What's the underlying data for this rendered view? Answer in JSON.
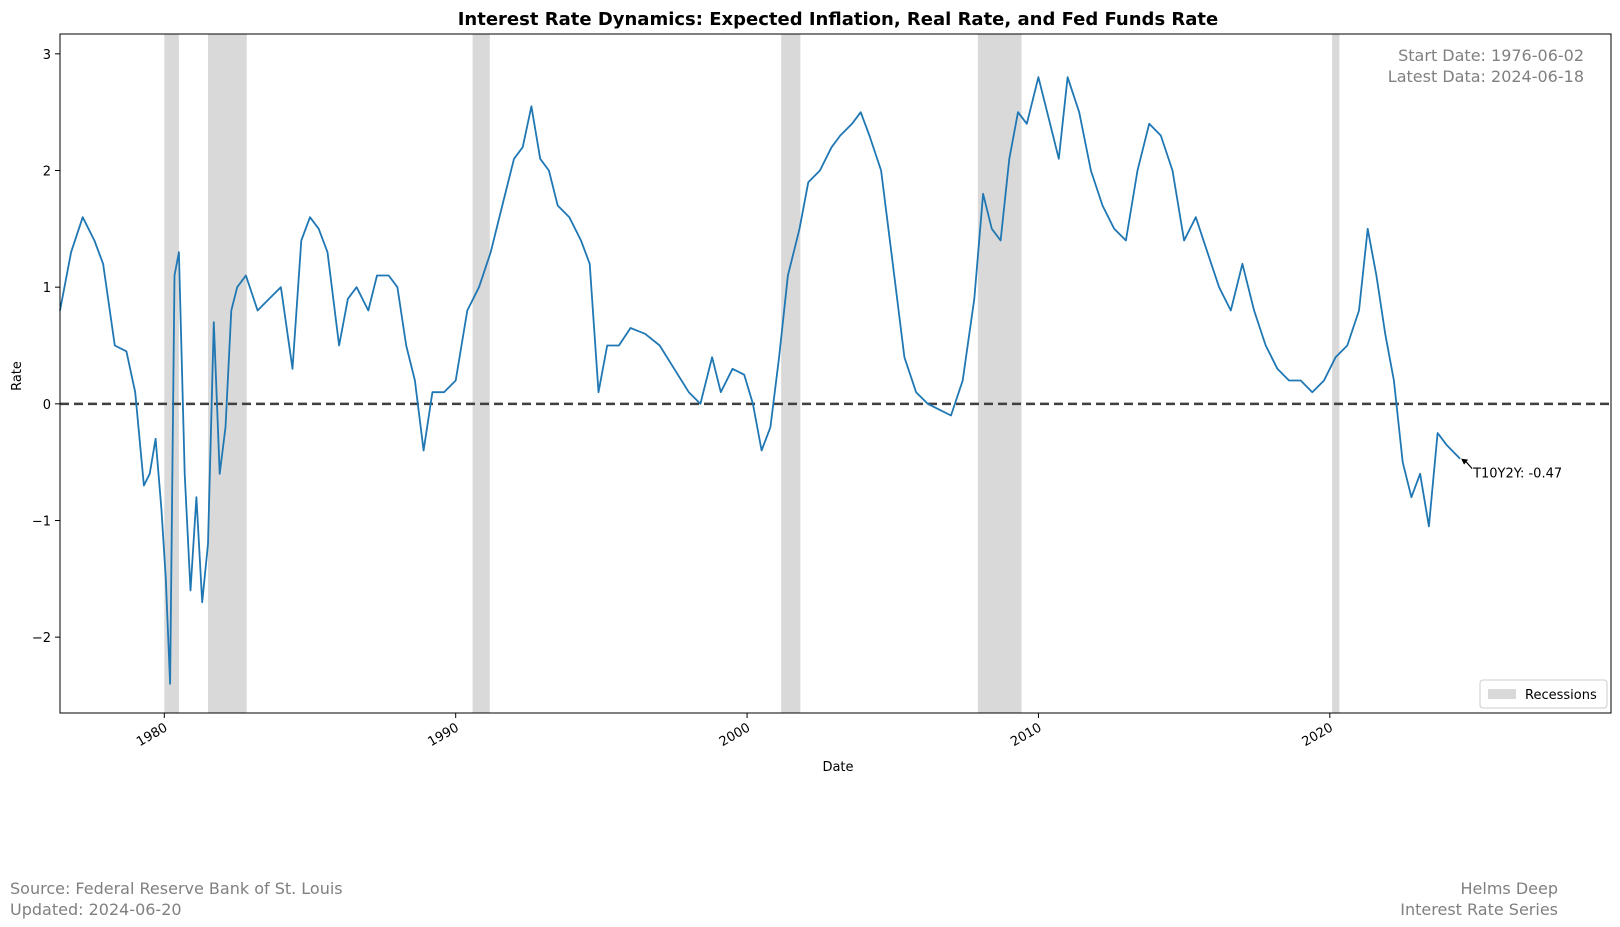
{
  "chart_data": {
    "type": "line",
    "title": "Interest Rate Dynamics: Expected Inflation, Real Rate, and Fed Funds Rate",
    "xlabel": "Date",
    "ylabel": "Rate",
    "xlim": [
      1976.42,
      2029.65
    ],
    "ylim": [
      -2.65,
      3.17
    ],
    "x_ticks": [
      1980,
      1990,
      2000,
      2010,
      2020
    ],
    "y_ticks": [
      -2,
      -1,
      0,
      1,
      2,
      3
    ],
    "y_tick_labels": [
      "−2",
      "−1",
      "0",
      "1",
      "2",
      "3"
    ],
    "zero_line": {
      "y": 0,
      "style": "dashed",
      "color": "#404040"
    },
    "recessions": [
      {
        "start": 1980.0,
        "end": 1980.5
      },
      {
        "start": 1981.5,
        "end": 1982.83
      },
      {
        "start": 1990.58,
        "end": 1991.17
      },
      {
        "start": 2001.17,
        "end": 2001.83
      },
      {
        "start": 2007.92,
        "end": 2009.42
      },
      {
        "start": 2020.08,
        "end": 2020.33
      }
    ],
    "legend": {
      "label": "Recessions",
      "position": "lower-right",
      "color": "#d9d9d9"
    },
    "series": [
      {
        "color": "#1f77b4",
        "x": [
          1976.42,
          1976.8,
          1977.2,
          1977.6,
          1977.9,
          1978.3,
          1978.7,
          1979.0,
          1979.3,
          1979.5,
          1979.7,
          1979.9,
          1980.05,
          1980.2,
          1980.35,
          1980.5,
          1980.7,
          1980.9,
          1981.1,
          1981.3,
          1981.5,
          1981.7,
          1981.9,
          1982.1,
          1982.3,
          1982.5,
          1982.8,
          1983.2,
          1983.6,
          1984.0,
          1984.4,
          1984.7,
          1985.0,
          1985.3,
          1985.6,
          1986.0,
          1986.3,
          1986.6,
          1987.0,
          1987.3,
          1987.7,
          1988.0,
          1988.3,
          1988.6,
          1988.9,
          1989.2,
          1989.6,
          1990.0,
          1990.4,
          1990.8,
          1991.2,
          1991.6,
          1992.0,
          1992.3,
          1992.6,
          1992.9,
          1993.2,
          1993.5,
          1993.9,
          1994.3,
          1994.6,
          1994.9,
          1995.2,
          1995.6,
          1996.0,
          1996.5,
          1997.0,
          1997.5,
          1998.0,
          1998.4,
          1998.8,
          1999.1,
          1999.5,
          1999.9,
          2000.2,
          2000.5,
          2000.8,
          2001.1,
          2001.4,
          2001.8,
          2002.1,
          2002.5,
          2002.9,
          2003.2,
          2003.6,
          2003.9,
          2004.2,
          2004.6,
          2005.0,
          2005.4,
          2005.8,
          2006.2,
          2006.6,
          2007.0,
          2007.4,
          2007.8,
          2008.1,
          2008.4,
          2008.7,
          2009.0,
          2009.3,
          2009.6,
          2010.0,
          2010.4,
          2010.7,
          2011.0,
          2011.4,
          2011.8,
          2012.2,
          2012.6,
          2013.0,
          2013.4,
          2013.8,
          2014.2,
          2014.6,
          2015.0,
          2015.4,
          2015.8,
          2016.2,
          2016.6,
          2017.0,
          2017.4,
          2017.8,
          2018.2,
          2018.6,
          2019.0,
          2019.4,
          2019.8,
          2020.2,
          2020.6,
          2021.0,
          2021.3,
          2021.6,
          2021.9,
          2022.2,
          2022.5,
          2022.8,
          2023.1,
          2023.4,
          2023.7,
          2024.0,
          2024.47
        ],
        "y": [
          0.8,
          1.3,
          1.6,
          1.4,
          1.2,
          0.5,
          0.45,
          0.1,
          -0.7,
          -0.6,
          -0.3,
          -0.9,
          -1.5,
          -2.4,
          1.1,
          1.3,
          -0.6,
          -1.6,
          -0.8,
          -1.7,
          -1.2,
          0.7,
          -0.6,
          -0.2,
          0.8,
          1.0,
          1.1,
          0.8,
          0.9,
          1.0,
          0.3,
          1.4,
          1.6,
          1.5,
          1.3,
          0.5,
          0.9,
          1.0,
          0.8,
          1.1,
          1.1,
          1.0,
          0.5,
          0.2,
          -0.4,
          0.1,
          0.1,
          0.2,
          0.8,
          1.0,
          1.3,
          1.7,
          2.1,
          2.2,
          2.55,
          2.1,
          2.0,
          1.7,
          1.6,
          1.4,
          1.2,
          0.1,
          0.5,
          0.5,
          0.65,
          0.6,
          0.5,
          0.3,
          0.1,
          0.0,
          0.4,
          0.1,
          0.3,
          0.25,
          0.0,
          -0.4,
          -0.2,
          0.4,
          1.1,
          1.5,
          1.9,
          2.0,
          2.2,
          2.3,
          2.4,
          2.5,
          2.3,
          2.0,
          1.2,
          0.4,
          0.1,
          0.0,
          -0.05,
          -0.1,
          0.2,
          0.9,
          1.8,
          1.5,
          1.4,
          2.1,
          2.5,
          2.4,
          2.8,
          2.4,
          2.1,
          2.8,
          2.5,
          2.0,
          1.7,
          1.5,
          1.4,
          2.0,
          2.4,
          2.3,
          2.0,
          1.4,
          1.6,
          1.3,
          1.0,
          0.8,
          1.2,
          0.8,
          0.5,
          0.3,
          0.2,
          0.2,
          0.1,
          0.2,
          0.4,
          0.5,
          0.8,
          1.5,
          1.1,
          0.6,
          0.2,
          -0.5,
          -0.8,
          -0.6,
          -1.05,
          -0.25,
          -0.35,
          -0.47
        ]
      }
    ],
    "annotation": {
      "text": "T10Y2Y: -0.47",
      "x": 2024.47,
      "y": -0.47
    },
    "info_box": {
      "line1": "Start Date: 1976-06-02",
      "line2": "Latest Data: 2024-06-18"
    }
  },
  "footer": {
    "left_line1": "Source: Federal Reserve Bank of St. Louis",
    "left_line2": "Updated: 2024-06-20",
    "right_line1": "Helms Deep",
    "right_line2": "Interest Rate Series"
  },
  "colors": {
    "line": "#1f77b4",
    "recession": "#d9d9d9",
    "zero_line": "#404040",
    "muted_text": "#808080"
  }
}
